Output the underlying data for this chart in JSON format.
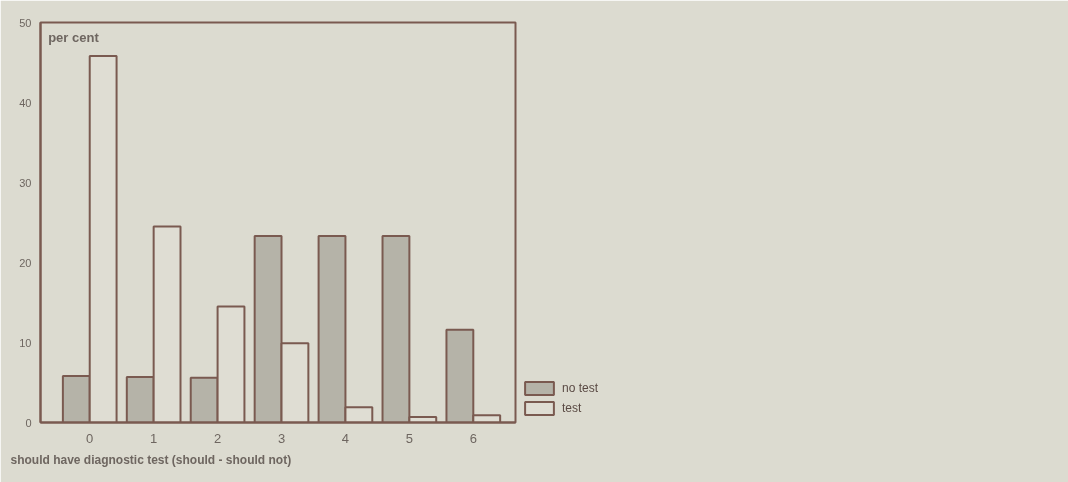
{
  "chart_data": {
    "type": "bar",
    "xlabel": "should have diagnostic test (should   -   should not)",
    "ylabel": "per cent",
    "categories": [
      "0",
      "1",
      "2",
      "3",
      "4",
      "5",
      "6"
    ],
    "series": [
      {
        "name": "no test",
        "color": "#b5b3a8",
        "values": [
          5.8,
          5.7,
          5.6,
          23.3,
          23.3,
          23.3,
          11.6
        ]
      },
      {
        "name": "test",
        "color": "#dfddd3",
        "values": [
          45.8,
          24.5,
          14.5,
          9.9,
          1.9,
          0.7,
          0.9
        ]
      }
    ],
    "ylim": [
      0,
      50
    ],
    "yticks": [
      0,
      10,
      20,
      30,
      40,
      50
    ],
    "grid": false,
    "legend": "bottom right"
  }
}
